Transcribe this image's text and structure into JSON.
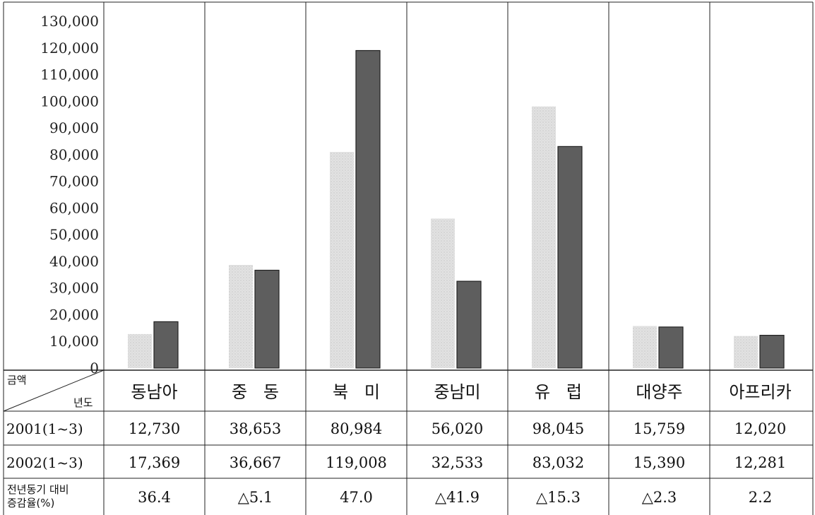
{
  "chart_data": {
    "type": "bar",
    "categories": [
      "동남아",
      "중 동",
      "북 미",
      "중남미",
      "유 럽",
      "대양주",
      "아프리카"
    ],
    "series": [
      {
        "name": "2001(1~3)",
        "values": [
          12730,
          38653,
          80984,
          56020,
          98045,
          15759,
          12020
        ],
        "color": "#d4d4d4"
      },
      {
        "name": "2002(1~3)",
        "values": [
          17369,
          36667,
          119008,
          32533,
          83032,
          15390,
          12281
        ],
        "color": "#5e5e5e"
      }
    ],
    "yticks": [
      "0",
      "10,000",
      "20,000",
      "30,000",
      "40,000",
      "50,000",
      "60,000",
      "70,000",
      "80,000",
      "90,000",
      "100,000",
      "110,000",
      "120,000",
      "130,000"
    ],
    "ylim": [
      0,
      130000
    ],
    "title": "",
    "xlabel": "",
    "ylabel": "",
    "grid": false,
    "legend": "none"
  },
  "table": {
    "header_top": "금액",
    "header_bottom": "년도",
    "rows": [
      {
        "label": "2001(1~3)",
        "cells": [
          "12,730",
          "38,653",
          "80,984",
          "56,020",
          "98,045",
          "15,759",
          "12,020"
        ]
      },
      {
        "label": "2002(1~3)",
        "cells": [
          "17,369",
          "36,667",
          "119,008",
          "32,533",
          "83,032",
          "15,390",
          "12,281"
        ]
      }
    ],
    "rate_row": {
      "label_line1": "전년동기 대비",
      "label_line2": "증감율(%)",
      "cells": [
        "36.4",
        "△5.1",
        "47.0",
        "△41.9",
        "△15.3",
        "△2.3",
        "2.2"
      ]
    }
  }
}
